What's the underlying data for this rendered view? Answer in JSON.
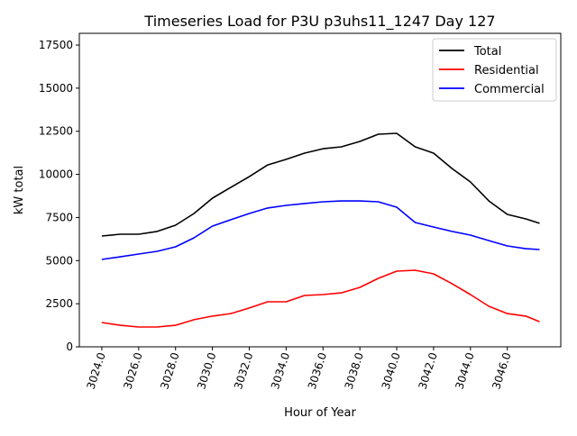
{
  "chart_data": {
    "type": "line",
    "title": "Timeseries Load for P3U p3uhs11_1247  Day 127",
    "xlabel": "Hour of Year",
    "ylabel": "kW total",
    "xlim": [
      3022.78,
      3048.9
    ],
    "ylim": [
      0,
      18180
    ],
    "xticks": [
      3024,
      3026,
      3028,
      3030,
      3032,
      3034,
      3036,
      3038,
      3040,
      3042,
      3044,
      3046
    ],
    "xtick_labels": [
      "3024.0",
      "3026.0",
      "3028.0",
      "3030.0",
      "3032.0",
      "3034.0",
      "3036.0",
      "3038.0",
      "3040.0",
      "3042.0",
      "3044.0",
      "3046.0"
    ],
    "yticks": [
      0,
      2500,
      5000,
      7500,
      10000,
      12500,
      15000,
      17500
    ],
    "ytick_labels": [
      "0",
      "2500",
      "5000",
      "7500",
      "10000",
      "12500",
      "15000",
      "17500"
    ],
    "legend_position": "top-right",
    "x": [
      3024,
      3025,
      3026,
      3027,
      3028,
      3029,
      3030,
      3031,
      3032,
      3033,
      3034,
      3035,
      3036,
      3037,
      3038,
      3039,
      3040,
      3041,
      3042,
      3043,
      3044,
      3045,
      3046,
      3047,
      3047.75
    ],
    "series": [
      {
        "name": "Total",
        "color": "#000000",
        "values": [
          6425,
          6530,
          6530,
          6690,
          7050,
          7730,
          8620,
          9250,
          9870,
          10550,
          10870,
          11230,
          11490,
          11600,
          11910,
          12330,
          12380,
          11600,
          11230,
          10340,
          9560,
          8460,
          7680,
          7420,
          7160
        ]
      },
      {
        "name": "Residential",
        "color": "#ff0000",
        "values": [
          1410,
          1250,
          1150,
          1150,
          1250,
          1570,
          1780,
          1930,
          2250,
          2610,
          2610,
          2980,
          3030,
          3130,
          3450,
          3970,
          4390,
          4440,
          4230,
          3660,
          3030,
          2350,
          1930,
          1780,
          1460
        ]
      },
      {
        "name": "Commercial",
        "color": "#0000ff",
        "values": [
          5070,
          5220,
          5380,
          5540,
          5800,
          6320,
          7000,
          7370,
          7730,
          8050,
          8200,
          8310,
          8410,
          8460,
          8460,
          8410,
          8100,
          7210,
          6950,
          6690,
          6480,
          6160,
          5850,
          5690,
          5640
        ]
      }
    ]
  }
}
